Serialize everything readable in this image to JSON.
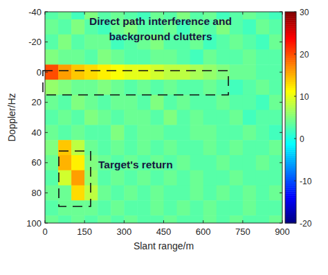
{
  "chart_data": {
    "type": "heatmap",
    "x_label": "Slant range/m",
    "y_label": "Doppler/Hz",
    "xlim": [
      0,
      900
    ],
    "xticks": [
      0,
      150,
      300,
      450,
      600,
      750,
      900
    ],
    "ylim": [
      -40,
      100
    ],
    "yticks": [
      -40,
      -20,
      0,
      20,
      40,
      60,
      80,
      100
    ],
    "x": [
      25,
      75,
      125,
      175,
      225,
      275,
      325,
      375,
      425,
      475,
      525,
      575,
      625,
      675,
      725,
      775,
      825,
      875
    ],
    "y": [
      -40,
      -30,
      -20,
      -10,
      0,
      10,
      20,
      30,
      40,
      50,
      60,
      70,
      80,
      90,
      100
    ],
    "z": [
      [
        3,
        4,
        2,
        5,
        3,
        4,
        3,
        2,
        4,
        3,
        5,
        3,
        4,
        2,
        3,
        4,
        3,
        2
      ],
      [
        4,
        3,
        5,
        3,
        2,
        4,
        5,
        3,
        3,
        4,
        2,
        4,
        3,
        5,
        3,
        2,
        4,
        3
      ],
      [
        3,
        5,
        3,
        4,
        4,
        2,
        3,
        4,
        5,
        3,
        3,
        4,
        2,
        3,
        4,
        3,
        2,
        4
      ],
      [
        5,
        4,
        4,
        3,
        5,
        4,
        3,
        3,
        4,
        4,
        3,
        2,
        4,
        3,
        3,
        4,
        3,
        3
      ],
      [
        20,
        16,
        14,
        13,
        12,
        11,
        10,
        10,
        9,
        8,
        8,
        7,
        6,
        5,
        4,
        4,
        3,
        3
      ],
      [
        6,
        5,
        4,
        4,
        5,
        4,
        3,
        4,
        3,
        4,
        3,
        3,
        4,
        3,
        2,
        3,
        4,
        3
      ],
      [
        4,
        3,
        5,
        4,
        3,
        4,
        4,
        3,
        5,
        3,
        4,
        3,
        3,
        4,
        3,
        3,
        2,
        4
      ],
      [
        3,
        4,
        3,
        5,
        4,
        3,
        4,
        4,
        3,
        5,
        3,
        4,
        3,
        3,
        4,
        2,
        3,
        3
      ],
      [
        4,
        3,
        4,
        3,
        3,
        5,
        3,
        4,
        4,
        3,
        3,
        4,
        4,
        3,
        3,
        4,
        3,
        2
      ],
      [
        5,
        14,
        8,
        4,
        3,
        4,
        3,
        4,
        3,
        4,
        3,
        3,
        4,
        3,
        4,
        3,
        3,
        4
      ],
      [
        4,
        15,
        12,
        5,
        4,
        3,
        4,
        3,
        4,
        3,
        4,
        3,
        3,
        4,
        3,
        3,
        4,
        3
      ],
      [
        3,
        9,
        16,
        6,
        3,
        4,
        3,
        4,
        3,
        4,
        3,
        4,
        3,
        3,
        4,
        3,
        3,
        3
      ],
      [
        4,
        4,
        13,
        8,
        4,
        3,
        4,
        3,
        4,
        3,
        3,
        4,
        3,
        4,
        3,
        4,
        3,
        4
      ],
      [
        3,
        4,
        4,
        4,
        3,
        4,
        3,
        3,
        4,
        3,
        4,
        3,
        4,
        3,
        3,
        4,
        3,
        3
      ],
      [
        4,
        3,
        4,
        3,
        4,
        3,
        4,
        3,
        3,
        4,
        3,
        3,
        4,
        3,
        4,
        3,
        3,
        4
      ]
    ],
    "zlim": [
      -20,
      30
    ],
    "zticks": [
      -20,
      -10,
      0,
      10,
      20,
      30
    ],
    "annotations": [
      {
        "text": [
          "Direct path interference and",
          "background clutters"
        ]
      },
      {
        "text": [
          "Target's return"
        ]
      }
    ]
  }
}
